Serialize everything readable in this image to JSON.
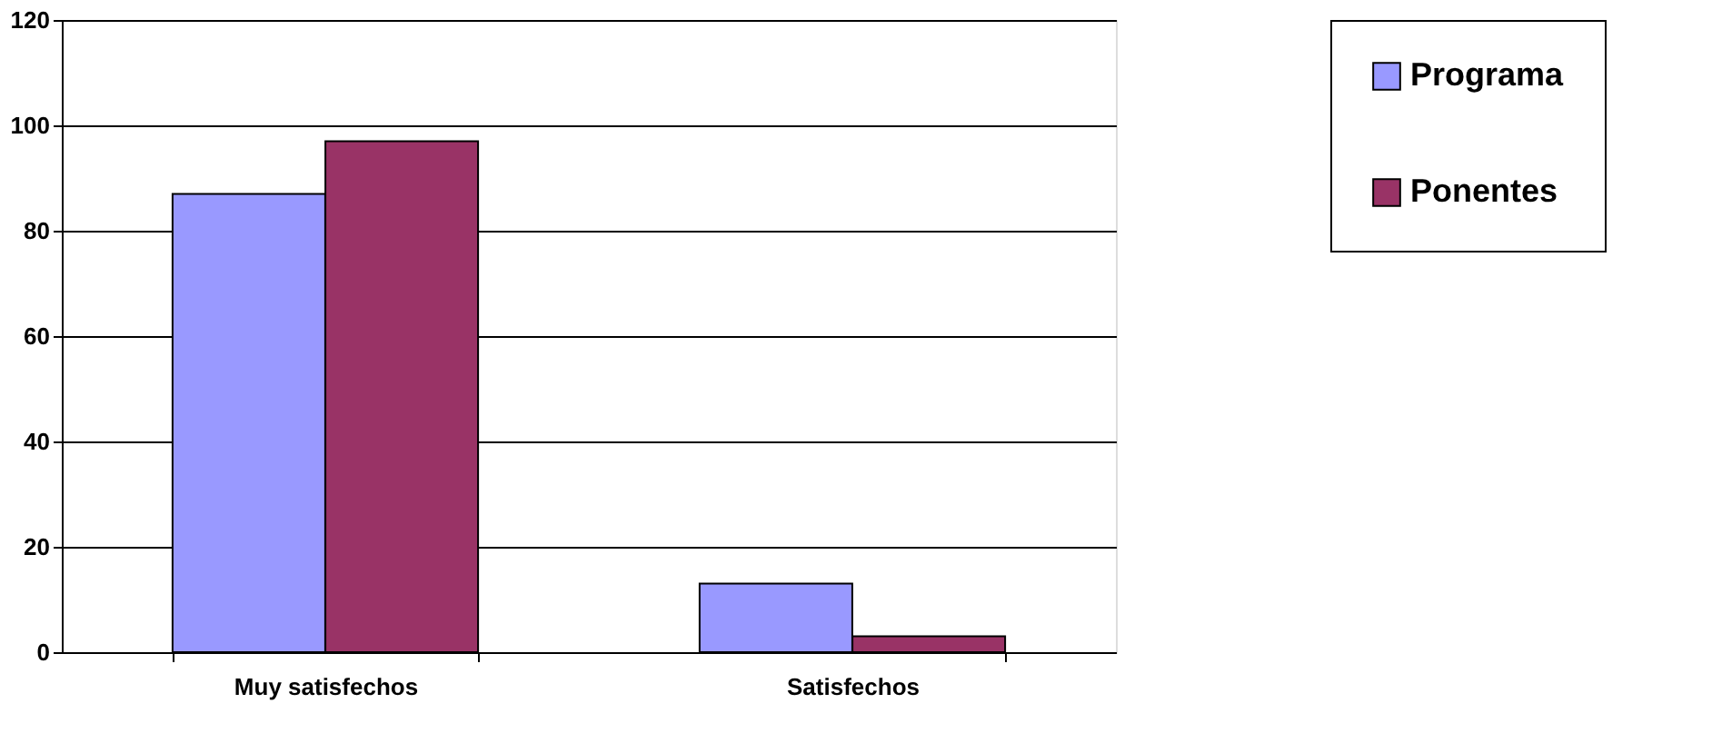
{
  "chart_data": {
    "type": "bar",
    "categories": [
      "Muy satisfechos",
      "Satisfechos"
    ],
    "series": [
      {
        "name": "Programa",
        "color": "#9999ff",
        "values": [
          87,
          13
        ]
      },
      {
        "name": "Ponentes",
        "color": "#993366",
        "values": [
          97,
          3
        ]
      }
    ],
    "ylim": [
      0,
      120
    ],
    "yticks": [
      0,
      20,
      40,
      60,
      80,
      100,
      120
    ],
    "grid": "y",
    "legend": "right"
  }
}
